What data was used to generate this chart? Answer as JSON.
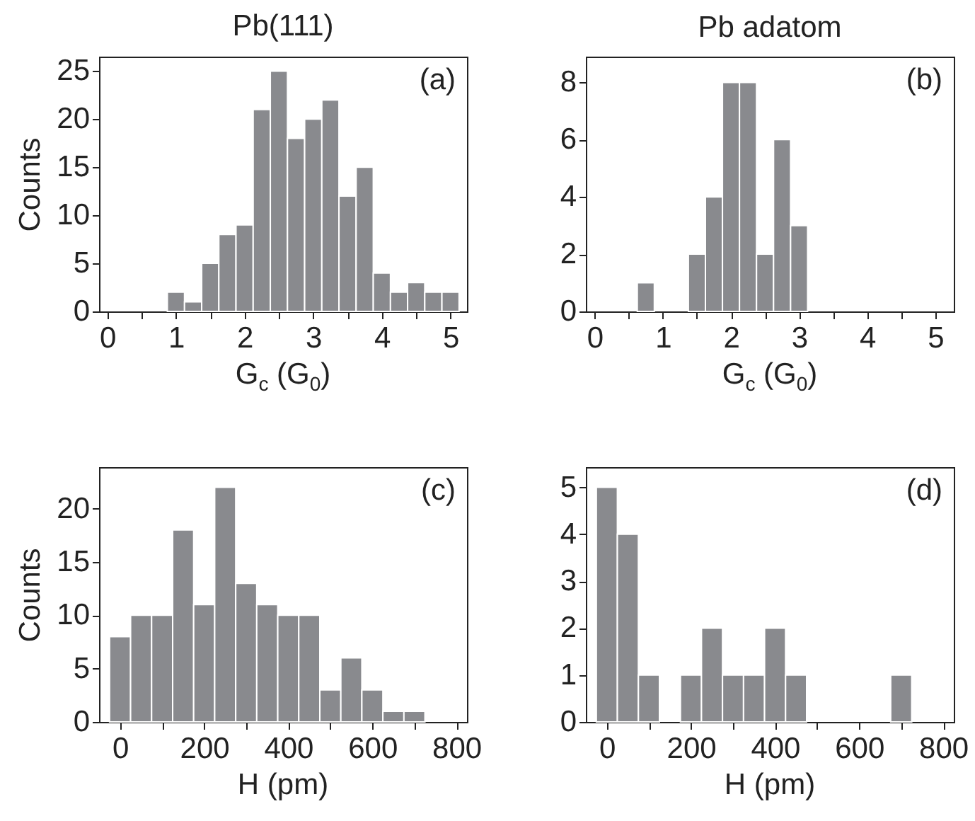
{
  "chart_data": [
    {
      "type": "histogram",
      "title": "Pb(111)",
      "xlabel": "G$_{c}$ (G$_{0}$)",
      "ylabel": "Counts",
      "color": "#898a8e",
      "bins": [
        0.875,
        1.125,
        1.375,
        1.625,
        1.875,
        2.125,
        2.375,
        2.625,
        2.875,
        3.125,
        3.375,
        3.625,
        3.875,
        4.125,
        4.375,
        4.625,
        4.875,
        5.125
      ],
      "values": [
        2,
        1,
        5,
        8,
        9,
        21,
        25,
        18,
        20,
        22,
        12,
        15,
        4,
        2,
        3,
        2,
        2
      ],
      "xlim": [
        -0.12,
        5.24
      ],
      "ylim": [
        0,
        26.5
      ],
      "xticks": [
        0,
        {
          "value": 0.5,
          "label": null
        },
        1,
        {
          "value": 1.5,
          "label": null
        },
        2,
        {
          "value": 2.5,
          "label": null
        },
        3,
        {
          "value": 3.5,
          "label": null
        },
        4,
        {
          "value": 4.5,
          "label": null
        },
        5
      ],
      "yticks": [
        0,
        5,
        10,
        15,
        20,
        25
      ],
      "annotations": [
        "(a)"
      ]
    },
    {
      "type": "histogram",
      "title": "Pb adatom",
      "xlabel": "G$_{c}$ (G$_{0}$)",
      "color": "#898a8e",
      "bins": [
        0.625,
        0.875,
        1.125,
        1.375,
        1.625,
        1.875,
        2.125,
        2.375,
        2.625,
        2.875,
        3.125
      ],
      "values": [
        1,
        0,
        0,
        2,
        4,
        8,
        8,
        2,
        6,
        3
      ],
      "xlim": [
        -0.13,
        5.27
      ],
      "ylim": [
        0,
        8.9
      ],
      "xticks": [
        0,
        {
          "value": 0.5,
          "label": null
        },
        1,
        {
          "value": 1.5,
          "label": null
        },
        2,
        {
          "value": 2.5,
          "label": null
        },
        3,
        {
          "value": 3.5,
          "label": null
        },
        4,
        {
          "value": 4.5,
          "label": null
        },
        5
      ],
      "yticks": [
        0,
        2,
        4,
        6,
        8
      ],
      "annotations": [
        "(b)"
      ]
    },
    {
      "type": "histogram",
      "xlabel": "H (pm)",
      "ylabel": "Counts",
      "color": "#898a8e",
      "bins": [
        -25,
        25,
        75,
        125,
        175,
        225,
        275,
        325,
        375,
        425,
        475,
        525,
        575,
        625,
        675,
        725
      ],
      "values": [
        8,
        10,
        10,
        18,
        11,
        22,
        13,
        11,
        10,
        10,
        3,
        6,
        3,
        1,
        1
      ],
      "xlim": [
        -50,
        825
      ],
      "ylim": [
        0,
        23.9
      ],
      "xticks": [
        0,
        {
          "value": 100,
          "label": null
        },
        200,
        {
          "value": 300,
          "label": null
        },
        400,
        {
          "value": 500,
          "label": null
        },
        600,
        {
          "value": 700,
          "label": null
        },
        800
      ],
      "yticks": [
        0,
        5,
        10,
        15,
        20
      ],
      "annotations": [
        "(c)"
      ]
    },
    {
      "type": "histogram",
      "xlabel": "H (pm)",
      "color": "#898a8e",
      "bins": [
        -25,
        25,
        75,
        125,
        175,
        225,
        275,
        325,
        375,
        425,
        475,
        525,
        575,
        625,
        675,
        725
      ],
      "values": [
        5,
        4,
        1,
        0,
        1,
        2,
        1,
        1,
        2,
        1,
        0,
        0,
        0,
        0,
        1
      ],
      "xlim": [
        -50,
        825
      ],
      "ylim": [
        0,
        5.43
      ],
      "xticks": [
        0,
        {
          "value": 100,
          "label": null
        },
        200,
        {
          "value": 300,
          "label": null
        },
        400,
        {
          "value": 500,
          "label": null
        },
        600,
        {
          "value": 700,
          "label": null
        },
        800
      ],
      "yticks": [
        0,
        1,
        2,
        3,
        4,
        5
      ],
      "annotations": [
        "(d)"
      ]
    }
  ]
}
